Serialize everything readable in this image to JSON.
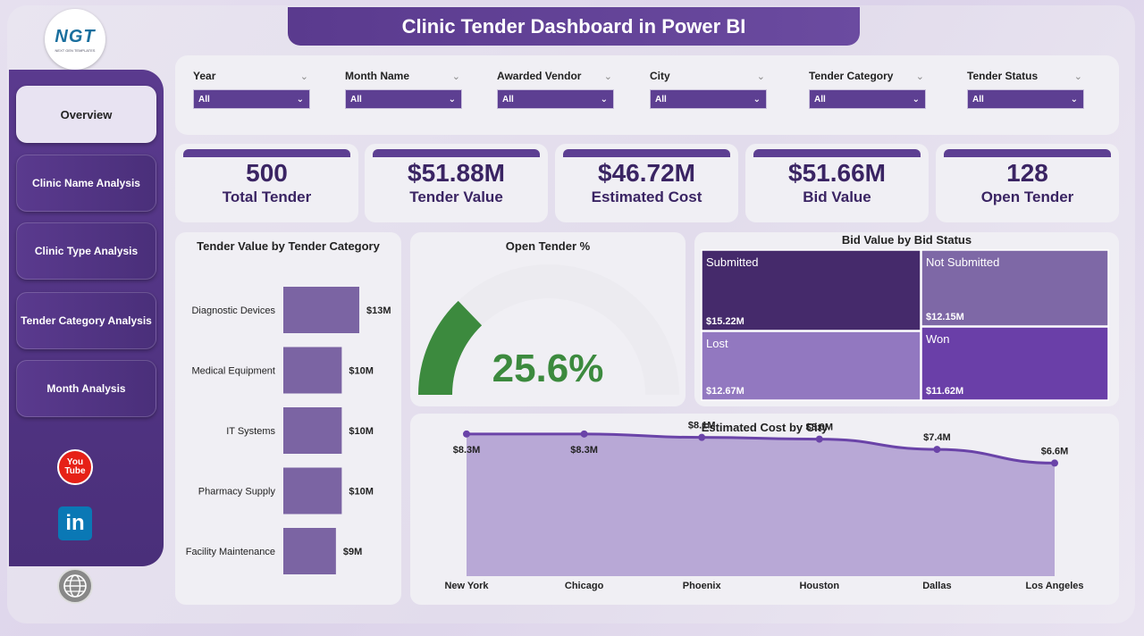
{
  "header": {
    "title": "Clinic Tender Dashboard in Power BI"
  },
  "logo": {
    "mark": "NGT",
    "tagline": "NEXT GEN TEMPLATES"
  },
  "nav": [
    {
      "label": "Overview",
      "active": true
    },
    {
      "label": "Clinic Name Analysis",
      "active": false
    },
    {
      "label": "Clinic Type Analysis",
      "active": false
    },
    {
      "label": "Tender Category Analysis",
      "active": false
    },
    {
      "label": "Month Analysis",
      "active": false
    }
  ],
  "social": {
    "youtube_line1": "You",
    "youtube_line2": "Tube",
    "linkedin": "in"
  },
  "filters": [
    {
      "label": "Year",
      "value": "All"
    },
    {
      "label": "Month Name",
      "value": "All"
    },
    {
      "label": "Awarded Vendor",
      "value": "All"
    },
    {
      "label": "City",
      "value": "All"
    },
    {
      "label": "Tender Category",
      "value": "All"
    },
    {
      "label": "Tender Status",
      "value": "All"
    }
  ],
  "kpis": [
    {
      "value": "500",
      "label": "Total Tender"
    },
    {
      "value": "$51.88M",
      "label": "Tender Value"
    },
    {
      "value": "$46.72M",
      "label": "Estimated Cost"
    },
    {
      "value": "$51.66M",
      "label": "Bid Value"
    },
    {
      "value": "128",
      "label": "Open Tender"
    }
  ],
  "colors": {
    "primary": "#5d3f92",
    "bar": "#7b64a3",
    "gauge_fill": "#3c8a3e",
    "gauge_track": "#ecebf0",
    "area_fill": "#b8a8d6",
    "line": "#6a43a8"
  },
  "chart_data": [
    {
      "type": "bar",
      "orientation": "horizontal",
      "title": "Tender Value by Tender Category",
      "categories": [
        "Diagnostic Devices",
        "Medical Equipment",
        "IT Systems",
        "Pharmacy Supply",
        "Facility Maintenance"
      ],
      "values": [
        13,
        10,
        10,
        10,
        9
      ],
      "value_unit": "M",
      "data_labels": [
        "$13M",
        "$10M",
        "$10M",
        "$10M",
        "$9M"
      ]
    },
    {
      "type": "gauge",
      "title": "Open Tender %",
      "value": 25.6,
      "max": 100,
      "display": "25.6%"
    },
    {
      "type": "treemap",
      "title": "Bid Value by Bid Status",
      "items": [
        {
          "name": "Submitted",
          "value": 15.22,
          "label": "$15.22M",
          "color": "#452a6b"
        },
        {
          "name": "Not Submitted",
          "value": 12.15,
          "label": "$12.15M",
          "color": "#7e68a6"
        },
        {
          "name": "Lost",
          "value": 12.67,
          "label": "$12.67M",
          "color": "#9278c0"
        },
        {
          "name": "Won",
          "value": 11.62,
          "label": "$11.62M",
          "color": "#6a3fa8"
        }
      ]
    },
    {
      "type": "area",
      "title": "Estimated Cost by City",
      "categories": [
        "New York",
        "Chicago",
        "Phoenix",
        "Houston",
        "Dallas",
        "Los Angeles"
      ],
      "values": [
        8.3,
        8.3,
        8.1,
        8.0,
        7.4,
        6.6
      ],
      "data_labels": [
        "$8.3M",
        "$8.3M",
        "$8.1M",
        "$8.0M",
        "$7.4M",
        "$6.6M"
      ],
      "ylim": [
        0,
        8.5
      ]
    }
  ]
}
